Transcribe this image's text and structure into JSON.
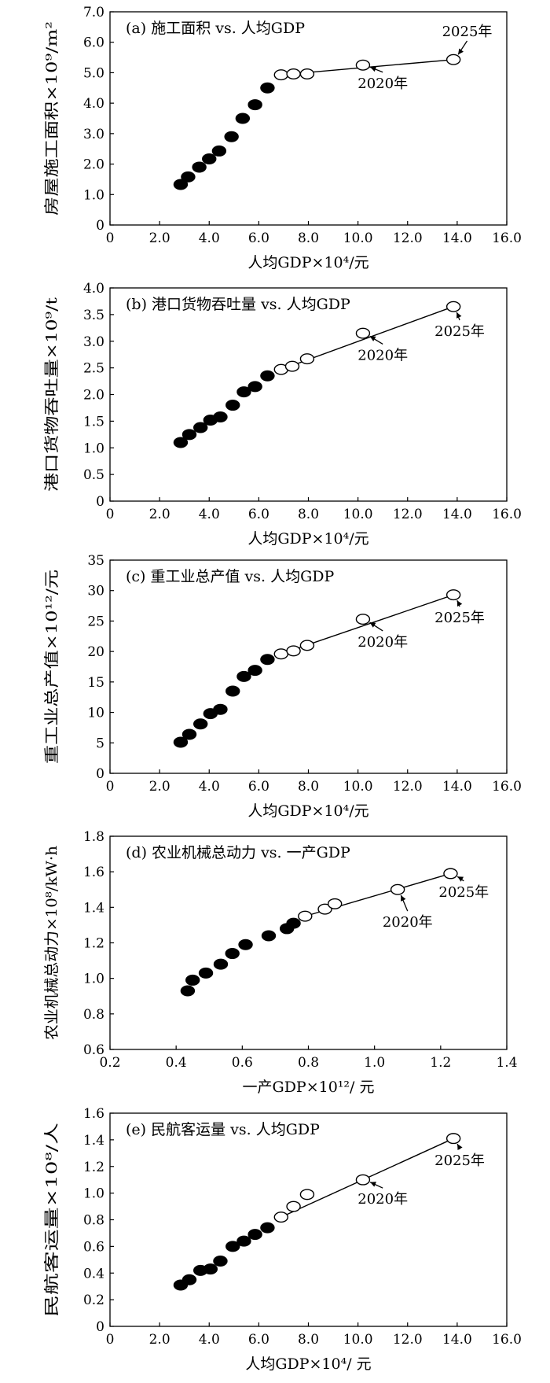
{
  "chart_data": [
    {
      "type": "scatter",
      "title": "(a) 施工面积 vs. 人均GDP",
      "xlabel": "人均GDP×10⁴/元",
      "ylabel": "房屋施工面积×10⁹/m²",
      "xlim": [
        0,
        16
      ],
      "ylim": [
        0,
        7
      ],
      "xticks": [
        0,
        2,
        4,
        6,
        8,
        10,
        12,
        14,
        16
      ],
      "xtick_labels": [
        "0",
        "2.0",
        "4.0",
        "6.0",
        "8.0",
        "10.0",
        "12.0",
        "14.0",
        "16.0"
      ],
      "yticks": [
        0,
        1,
        2,
        3,
        4,
        5,
        6,
        7
      ],
      "ytick_labels": [
        "0",
        "1.0",
        "2.0",
        "3.0",
        "4.0",
        "5.0",
        "6.0",
        "7.0"
      ],
      "grid": false,
      "series": [
        {
          "marker": "filled",
          "points": [
            [
              2.85,
              1.33
            ],
            [
              3.15,
              1.58
            ],
            [
              3.6,
              1.9
            ],
            [
              4.0,
              2.17
            ],
            [
              4.4,
              2.43
            ],
            [
              4.9,
              2.9
            ],
            [
              5.35,
              3.5
            ],
            [
              5.85,
              3.95
            ],
            [
              6.35,
              4.5
            ]
          ]
        },
        {
          "marker": "open",
          "points": [
            [
              6.9,
              4.93
            ],
            [
              7.4,
              4.96
            ],
            [
              7.95,
              4.96
            ],
            [
              10.2,
              5.25
            ],
            [
              13.85,
              5.43
            ]
          ]
        }
      ],
      "trend_line": [
        [
          6.9,
          4.93
        ],
        [
          13.85,
          5.43
        ]
      ],
      "annotations": [
        {
          "text": "2020年",
          "point": [
            10.2,
            5.25
          ],
          "label_at": [
            11.0,
            4.5
          ]
        },
        {
          "text": "2025年",
          "point": [
            13.85,
            5.43
          ],
          "label_at": [
            14.4,
            6.2
          ]
        }
      ]
    },
    {
      "type": "scatter",
      "title": "(b) 港口货物吞吐量 vs. 人均GDP",
      "xlabel": "人均GDP×10⁴/元",
      "ylabel": "港口货物吞吐量×10⁹/t",
      "xlim": [
        0,
        16
      ],
      "ylim": [
        0,
        4
      ],
      "xticks": [
        0,
        2,
        4,
        6,
        8,
        10,
        12,
        14,
        16
      ],
      "xtick_labels": [
        "0",
        "2.0",
        "4.0",
        "6.0",
        "8.0",
        "10.0",
        "12.0",
        "14.0",
        "16.0"
      ],
      "yticks": [
        0,
        0.5,
        1,
        1.5,
        2,
        2.5,
        3,
        3.5,
        4
      ],
      "ytick_labels": [
        "0",
        "0.5",
        "1.0",
        "1.5",
        "2.0",
        "2.5",
        "3.0",
        "3.5",
        "4.0"
      ],
      "grid": false,
      "series": [
        {
          "marker": "filled",
          "points": [
            [
              2.85,
              1.1
            ],
            [
              3.2,
              1.25
            ],
            [
              3.65,
              1.38
            ],
            [
              4.05,
              1.52
            ],
            [
              4.45,
              1.58
            ],
            [
              4.95,
              1.8
            ],
            [
              5.4,
              2.05
            ],
            [
              5.85,
              2.15
            ],
            [
              6.35,
              2.35
            ]
          ]
        },
        {
          "marker": "open",
          "points": [
            [
              6.9,
              2.47
            ],
            [
              7.35,
              2.53
            ],
            [
              7.95,
              2.67
            ],
            [
              10.2,
              3.15
            ],
            [
              13.85,
              3.65
            ]
          ]
        }
      ],
      "trend_line": [
        [
          6.9,
          2.47
        ],
        [
          13.85,
          3.65
        ]
      ],
      "annotations": [
        {
          "text": "2020年",
          "point": [
            10.2,
            3.15
          ],
          "label_at": [
            11.0,
            2.65
          ]
        },
        {
          "text": "2025年",
          "point": [
            13.85,
            3.65
          ],
          "label_at": [
            14.1,
            3.1
          ]
        }
      ]
    },
    {
      "type": "scatter",
      "title": "(c) 重工业总产值 vs. 人均GDP",
      "xlabel": "人均GDP×10⁴/元",
      "ylabel": "重工业总产值×10¹²/元",
      "xlim": [
        0,
        16
      ],
      "ylim": [
        0,
        35
      ],
      "xticks": [
        0,
        2,
        4,
        6,
        8,
        10,
        12,
        14,
        16
      ],
      "xtick_labels": [
        "0",
        "2.0",
        "4.0",
        "6.0",
        "8.0",
        "10.0",
        "12.0",
        "14.0",
        "16.0"
      ],
      "yticks": [
        0,
        5,
        10,
        15,
        20,
        25,
        30,
        35
      ],
      "ytick_labels": [
        "0",
        "5",
        "10",
        "15",
        "20",
        "25",
        "30",
        "35"
      ],
      "grid": false,
      "series": [
        {
          "marker": "filled",
          "points": [
            [
              2.85,
              5.1
            ],
            [
              3.2,
              6.4
            ],
            [
              3.65,
              8.1
            ],
            [
              4.05,
              9.8
            ],
            [
              4.45,
              10.5
            ],
            [
              4.95,
              13.5
            ],
            [
              5.4,
              15.9
            ],
            [
              5.85,
              16.9
            ],
            [
              6.35,
              18.7
            ]
          ]
        },
        {
          "marker": "open",
          "points": [
            [
              6.9,
              19.6
            ],
            [
              7.4,
              20.1
            ],
            [
              7.95,
              21.0
            ],
            [
              10.2,
              25.3
            ],
            [
              13.85,
              29.3
            ]
          ]
        }
      ],
      "trend_line": [
        [
          6.9,
          19.6
        ],
        [
          13.85,
          29.3
        ]
      ],
      "annotations": [
        {
          "text": "2020年",
          "point": [
            10.2,
            25.3
          ],
          "label_at": [
            11.0,
            20.8
          ]
        },
        {
          "text": "2025年",
          "point": [
            13.85,
            29.3
          ],
          "label_at": [
            14.1,
            24.8
          ]
        }
      ]
    },
    {
      "type": "scatter",
      "title": "(d) 农业机械总动力 vs. 一产GDP",
      "xlabel": "一产GDP×10¹²/ 元",
      "ylabel": "农业机械总动力×10⁸/kW·h",
      "xlim": [
        0.2,
        1.4
      ],
      "ylim": [
        0.6,
        1.8
      ],
      "xticks": [
        0.2,
        0.4,
        0.6,
        0.8,
        1.0,
        1.2,
        1.4
      ],
      "xtick_labels": [
        "0.2",
        "0.4",
        "0.6",
        "0.8",
        "1.0",
        "1.2",
        "1.4"
      ],
      "yticks": [
        0.6,
        0.8,
        1.0,
        1.2,
        1.4,
        1.6,
        1.8
      ],
      "ytick_labels": [
        "0.6",
        "0.8",
        "1.0",
        "1.2",
        "1.4",
        "1.6",
        "1.8"
      ],
      "grid": false,
      "series": [
        {
          "marker": "filled",
          "points": [
            [
              0.435,
              0.93
            ],
            [
              0.45,
              0.99
            ],
            [
              0.49,
              1.03
            ],
            [
              0.535,
              1.08
            ],
            [
              0.57,
              1.14
            ],
            [
              0.61,
              1.19
            ],
            [
              0.68,
              1.24
            ],
            [
              0.735,
              1.28
            ],
            [
              0.755,
              1.31
            ]
          ]
        },
        {
          "marker": "open",
          "points": [
            [
              0.79,
              1.35
            ],
            [
              0.85,
              1.39
            ],
            [
              0.88,
              1.42
            ],
            [
              1.07,
              1.5
            ],
            [
              1.23,
              1.59
            ]
          ]
        }
      ],
      "trend_line": [
        [
          0.79,
          1.35
        ],
        [
          1.23,
          1.59
        ]
      ],
      "annotations": [
        {
          "text": "2020年",
          "point": [
            1.07,
            1.5
          ],
          "label_at": [
            1.1,
            1.29
          ]
        },
        {
          "text": "2025年",
          "point": [
            1.23,
            1.59
          ],
          "label_at": [
            1.27,
            1.46
          ]
        }
      ]
    },
    {
      "type": "scatter",
      "title": "(e) 民航客运量 vs. 人均GDP",
      "xlabel": "人均GDP×10⁴/ 元",
      "ylabel": "民航客运量×10⁸/人",
      "xlim": [
        0,
        16
      ],
      "ylim": [
        0,
        1.6
      ],
      "xticks": [
        0,
        2,
        4,
        6,
        8,
        10,
        12,
        14,
        16
      ],
      "xtick_labels": [
        "0",
        "2.0",
        "4.0",
        "6.0",
        "8.0",
        "10.0",
        "12.0",
        "14.0",
        "16.0"
      ],
      "yticks": [
        0,
        0.2,
        0.4,
        0.6,
        0.8,
        1.0,
        1.2,
        1.4,
        1.6
      ],
      "ytick_labels": [
        "0",
        "0.2",
        "0.4",
        "0.6",
        "0.8",
        "1.0",
        "1.2",
        "1.4",
        "1.6"
      ],
      "grid": false,
      "series": [
        {
          "marker": "filled",
          "points": [
            [
              2.85,
              0.31
            ],
            [
              3.2,
              0.35
            ],
            [
              3.65,
              0.42
            ],
            [
              4.05,
              0.43
            ],
            [
              4.45,
              0.49
            ],
            [
              4.95,
              0.6
            ],
            [
              5.4,
              0.64
            ],
            [
              5.85,
              0.69
            ],
            [
              6.35,
              0.74
            ]
          ]
        },
        {
          "marker": "open",
          "points": [
            [
              6.9,
              0.82
            ],
            [
              7.4,
              0.9
            ],
            [
              7.95,
              0.99
            ],
            [
              10.2,
              1.1
            ],
            [
              13.85,
              1.41
            ]
          ]
        }
      ],
      "trend_line": [
        [
          6.9,
          0.82
        ],
        [
          13.85,
          1.41
        ]
      ],
      "annotations": [
        {
          "text": "2020年",
          "point": [
            10.2,
            1.1
          ],
          "label_at": [
            11.0,
            0.92
          ]
        },
        {
          "text": "2025年",
          "point": [
            13.85,
            1.41
          ],
          "label_at": [
            14.1,
            1.21
          ]
        }
      ]
    }
  ]
}
